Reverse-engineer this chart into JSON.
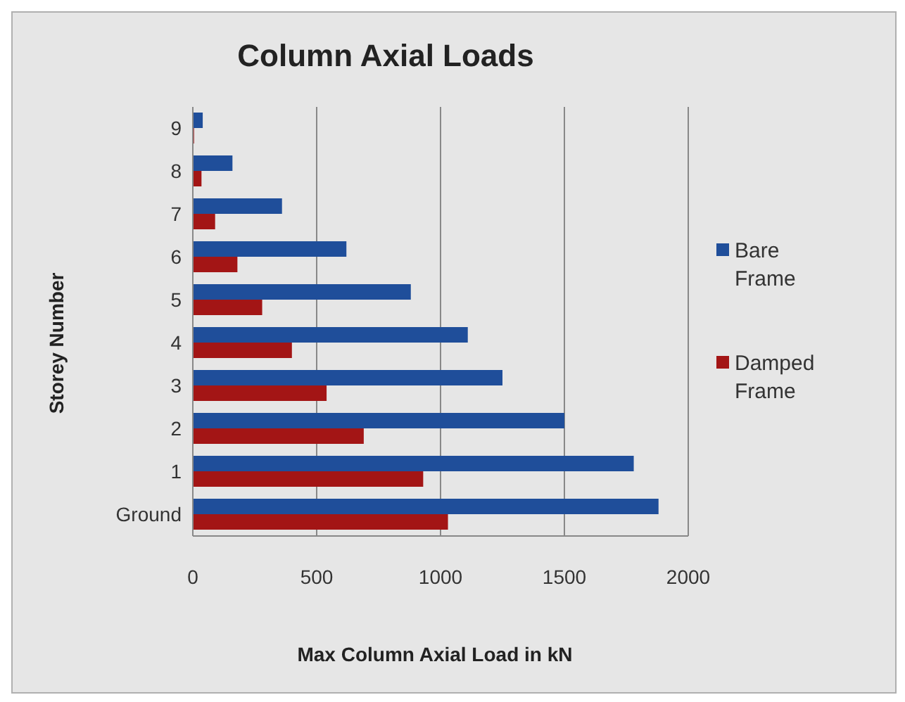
{
  "chart_data": {
    "type": "bar",
    "orientation": "horizontal",
    "title": "Column Axial Loads",
    "xlabel": "Max Column Axial Load in kN",
    "ylabel": "Storey Number",
    "categories": [
      "9",
      "8",
      "7",
      "6",
      "5",
      "4",
      "3",
      "2",
      "1",
      "Ground"
    ],
    "series": [
      {
        "name": "Bare Frame",
        "color": "#1f4e9a",
        "values": [
          40,
          160,
          360,
          620,
          880,
          1110,
          1250,
          1500,
          1780,
          1880
        ]
      },
      {
        "name": "Damped Frame",
        "color": "#a31515",
        "values": [
          5,
          35,
          90,
          180,
          280,
          400,
          540,
          690,
          930,
          1030
        ]
      }
    ],
    "xlim": [
      0,
      2000
    ],
    "xticks": [
      0,
      500,
      1000,
      1500,
      2000
    ],
    "grid": "x",
    "legend": "right"
  }
}
